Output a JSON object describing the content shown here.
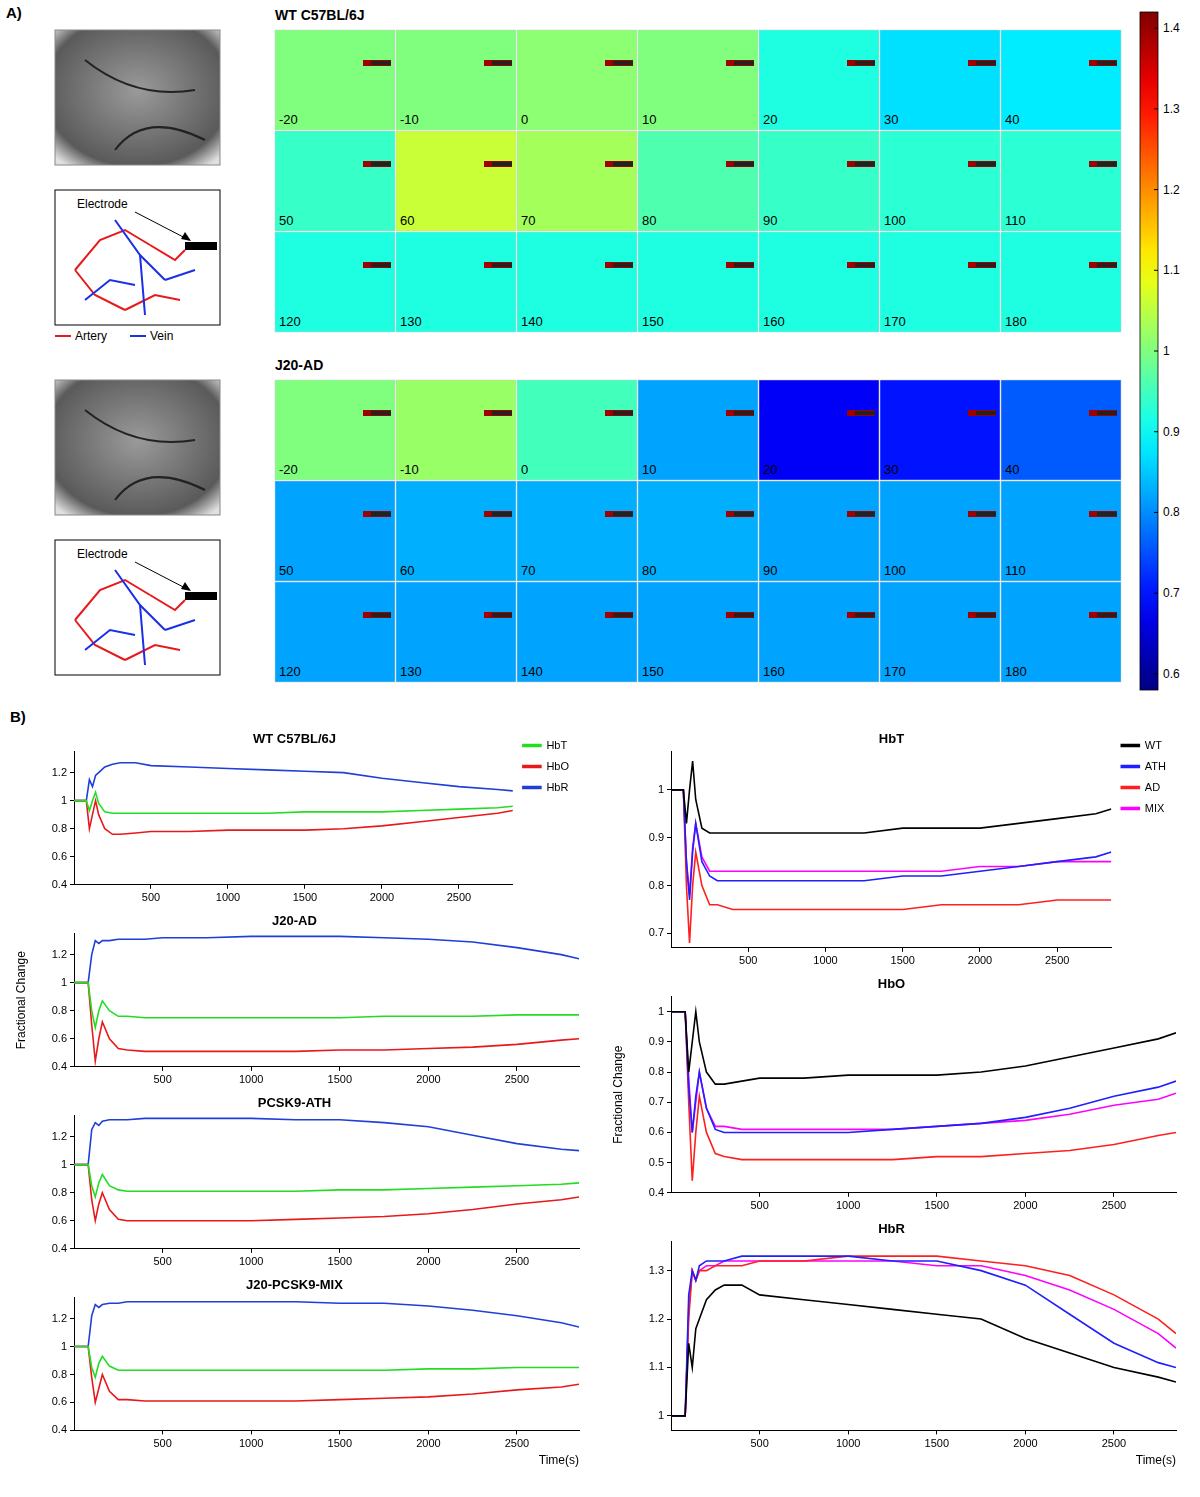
{
  "panel_a": {
    "label": "A)",
    "colorbar": {
      "lim": [
        0.58,
        1.42
      ],
      "ticks": [
        0.6,
        0.7,
        0.8,
        0.9,
        1,
        1.1,
        1.2,
        1.3,
        1.4
      ]
    },
    "electrode_label": "Electrode",
    "vessel_legend": [
      {
        "name": "Artery",
        "color": "#e8191b"
      },
      {
        "name": "Vein",
        "color": "#1b2fe8"
      }
    ],
    "groups": [
      {
        "title": "WT C57BL/6J",
        "times": [
          -20,
          -10,
          0,
          10,
          20,
          30,
          40,
          50,
          60,
          70,
          80,
          90,
          100,
          110,
          120,
          130,
          140,
          150,
          160,
          170,
          180
        ],
        "values": [
          1.0,
          1.0,
          1.01,
          1.0,
          0.92,
          0.87,
          0.88,
          0.94,
          1.06,
          1.03,
          0.96,
          0.94,
          0.93,
          0.93,
          0.92,
          0.92,
          0.92,
          0.92,
          0.92,
          0.92,
          0.92
        ]
      },
      {
        "title": "J20-AD",
        "times": [
          -20,
          -10,
          0,
          10,
          20,
          30,
          40,
          50,
          60,
          70,
          80,
          90,
          100,
          110,
          120,
          130,
          140,
          150,
          160,
          170,
          180
        ],
        "values": [
          1.0,
          1.02,
          0.95,
          0.82,
          0.68,
          0.7,
          0.76,
          0.82,
          0.83,
          0.83,
          0.83,
          0.82,
          0.82,
          0.82,
          0.82,
          0.82,
          0.82,
          0.82,
          0.82,
          0.82,
          0.82
        ]
      }
    ]
  },
  "panel_b": {
    "label": "B)"
  },
  "chart_data": [
    {
      "type": "line",
      "title": "WT C57BL/6J",
      "grid": false,
      "legend": "right",
      "x": [
        0,
        50,
        80,
        100,
        120,
        140,
        160,
        200,
        250,
        300,
        400,
        500,
        750,
        1000,
        1250,
        1500,
        1750,
        2000,
        2250,
        2500,
        2750,
        2850
      ],
      "xlim": [
        0,
        2850
      ],
      "xticks": [
        500,
        1000,
        1500,
        2000,
        2500
      ],
      "ylim": [
        0.4,
        1.35
      ],
      "yticks": [
        0.4,
        0.6,
        0.8,
        1,
        1.2
      ],
      "series": [
        {
          "name": "HbT",
          "color": "#22dd22",
          "values": [
            1,
            1,
            1,
            0.93,
            1.0,
            1.06,
            0.98,
            0.92,
            0.91,
            0.91,
            0.91,
            0.91,
            0.91,
            0.91,
            0.91,
            0.92,
            0.92,
            0.92,
            0.93,
            0.94,
            0.95,
            0.96
          ]
        },
        {
          "name": "HbO",
          "color": "#e8191b",
          "values": [
            1,
            1,
            1,
            0.8,
            0.9,
            1.0,
            0.9,
            0.8,
            0.76,
            0.76,
            0.77,
            0.78,
            0.78,
            0.79,
            0.79,
            0.79,
            0.8,
            0.82,
            0.85,
            0.88,
            0.91,
            0.93
          ]
        },
        {
          "name": "HbR",
          "color": "#1f3fd8",
          "values": [
            1,
            1,
            1,
            1.15,
            1.1,
            1.18,
            1.2,
            1.24,
            1.26,
            1.27,
            1.27,
            1.25,
            1.24,
            1.23,
            1.22,
            1.21,
            1.2,
            1.16,
            1.13,
            1.1,
            1.08,
            1.07
          ]
        }
      ]
    },
    {
      "type": "line",
      "title": "J20-AD",
      "grid": false,
      "y_label": "Fractional Change",
      "x": [
        0,
        50,
        80,
        100,
        120,
        140,
        160,
        200,
        250,
        300,
        400,
        500,
        750,
        1000,
        1250,
        1500,
        1750,
        2000,
        2250,
        2500,
        2750,
        2850
      ],
      "xlim": [
        0,
        2850
      ],
      "xticks": [
        500,
        1000,
        1500,
        2000,
        2500
      ],
      "ylim": [
        0.4,
        1.35
      ],
      "yticks": [
        0.4,
        0.6,
        0.8,
        1,
        1.2
      ],
      "series": [
        {
          "name": "HbT",
          "color": "#22dd22",
          "values": [
            1,
            1,
            1,
            0.8,
            0.68,
            0.8,
            0.87,
            0.8,
            0.76,
            0.76,
            0.75,
            0.75,
            0.75,
            0.75,
            0.75,
            0.75,
            0.76,
            0.76,
            0.76,
            0.77,
            0.77,
            0.77
          ]
        },
        {
          "name": "HbO",
          "color": "#e8191b",
          "values": [
            1,
            1,
            1,
            0.7,
            0.44,
            0.6,
            0.72,
            0.6,
            0.53,
            0.52,
            0.51,
            0.51,
            0.51,
            0.51,
            0.51,
            0.52,
            0.52,
            0.53,
            0.54,
            0.56,
            0.59,
            0.6
          ]
        },
        {
          "name": "HbR",
          "color": "#1f3fd8",
          "values": [
            1,
            1,
            1,
            1.2,
            1.3,
            1.28,
            1.3,
            1.3,
            1.31,
            1.31,
            1.31,
            1.32,
            1.32,
            1.33,
            1.33,
            1.33,
            1.32,
            1.31,
            1.29,
            1.25,
            1.2,
            1.17
          ]
        }
      ]
    },
    {
      "type": "line",
      "title": "PCSK9-ATH",
      "grid": false,
      "x": [
        0,
        50,
        80,
        100,
        120,
        140,
        160,
        200,
        250,
        300,
        400,
        500,
        750,
        1000,
        1250,
        1500,
        1750,
        2000,
        2250,
        2500,
        2750,
        2850
      ],
      "xlim": [
        0,
        2850
      ],
      "xticks": [
        500,
        1000,
        1500,
        2000,
        2500
      ],
      "ylim": [
        0.4,
        1.35
      ],
      "yticks": [
        0.4,
        0.6,
        0.8,
        1,
        1.2
      ],
      "series": [
        {
          "name": "HbT",
          "color": "#22dd22",
          "values": [
            1,
            1,
            1,
            0.85,
            0.77,
            0.87,
            0.93,
            0.85,
            0.82,
            0.81,
            0.81,
            0.81,
            0.81,
            0.81,
            0.81,
            0.82,
            0.82,
            0.83,
            0.84,
            0.85,
            0.86,
            0.87
          ]
        },
        {
          "name": "HbO",
          "color": "#e8191b",
          "values": [
            1,
            1,
            1,
            0.75,
            0.6,
            0.72,
            0.8,
            0.68,
            0.61,
            0.6,
            0.6,
            0.6,
            0.6,
            0.6,
            0.61,
            0.62,
            0.63,
            0.65,
            0.68,
            0.72,
            0.75,
            0.77
          ]
        },
        {
          "name": "HbR",
          "color": "#1f3fd8",
          "values": [
            1,
            1,
            1,
            1.25,
            1.3,
            1.28,
            1.31,
            1.32,
            1.32,
            1.32,
            1.33,
            1.33,
            1.33,
            1.33,
            1.32,
            1.32,
            1.3,
            1.27,
            1.21,
            1.15,
            1.11,
            1.1
          ]
        }
      ]
    },
    {
      "type": "line",
      "title": "J20-PCSK9-MIX",
      "grid": false,
      "x_label": "Time(s)",
      "x": [
        0,
        50,
        80,
        100,
        120,
        140,
        160,
        200,
        250,
        300,
        400,
        500,
        750,
        1000,
        1250,
        1500,
        1750,
        2000,
        2250,
        2500,
        2750,
        2850
      ],
      "xlim": [
        0,
        2850
      ],
      "xticks": [
        500,
        1000,
        1500,
        2000,
        2500
      ],
      "ylim": [
        0.4,
        1.35
      ],
      "yticks": [
        0.4,
        0.6,
        0.8,
        1,
        1.2
      ],
      "series": [
        {
          "name": "HbT",
          "color": "#22dd22",
          "values": [
            1,
            1,
            1,
            0.85,
            0.78,
            0.88,
            0.93,
            0.86,
            0.83,
            0.83,
            0.83,
            0.83,
            0.83,
            0.83,
            0.83,
            0.83,
            0.83,
            0.84,
            0.84,
            0.85,
            0.85,
            0.85
          ]
        },
        {
          "name": "HbO",
          "color": "#e8191b",
          "values": [
            1,
            1,
            1,
            0.78,
            0.6,
            0.7,
            0.8,
            0.68,
            0.62,
            0.62,
            0.61,
            0.61,
            0.61,
            0.61,
            0.61,
            0.62,
            0.63,
            0.64,
            0.66,
            0.69,
            0.71,
            0.73
          ]
        },
        {
          "name": "HbR",
          "color": "#1f3fd8",
          "values": [
            1,
            1,
            1,
            1.22,
            1.3,
            1.28,
            1.3,
            1.31,
            1.31,
            1.32,
            1.32,
            1.32,
            1.32,
            1.32,
            1.32,
            1.31,
            1.31,
            1.29,
            1.26,
            1.22,
            1.17,
            1.14
          ]
        }
      ]
    },
    {
      "type": "line",
      "title": "HbT",
      "grid": false,
      "legend": "right",
      "x": [
        0,
        50,
        80,
        100,
        120,
        140,
        160,
        200,
        250,
        300,
        400,
        500,
        750,
        1000,
        1250,
        1500,
        1750,
        2000,
        2250,
        2500,
        2750,
        2850
      ],
      "xlim": [
        0,
        2850
      ],
      "xticks": [
        500,
        1000,
        1500,
        2000,
        2500
      ],
      "ylim": [
        0.67,
        1.08
      ],
      "yticks": [
        0.7,
        0.8,
        0.9,
        1
      ],
      "series": [
        {
          "name": "WT",
          "color": "#000000",
          "values": [
            1,
            1,
            1,
            0.93,
            1.0,
            1.06,
            0.98,
            0.92,
            0.91,
            0.91,
            0.91,
            0.91,
            0.91,
            0.91,
            0.91,
            0.92,
            0.92,
            0.92,
            0.93,
            0.94,
            0.95,
            0.96
          ]
        },
        {
          "name": "ATH",
          "color": "#1f1fff",
          "values": [
            1,
            1,
            1,
            0.85,
            0.77,
            0.87,
            0.93,
            0.85,
            0.82,
            0.81,
            0.81,
            0.81,
            0.81,
            0.81,
            0.81,
            0.82,
            0.82,
            0.83,
            0.84,
            0.85,
            0.86,
            0.87
          ]
        },
        {
          "name": "AD",
          "color": "#ff1f1f",
          "values": [
            1,
            1,
            1,
            0.8,
            0.68,
            0.8,
            0.87,
            0.8,
            0.76,
            0.76,
            0.75,
            0.75,
            0.75,
            0.75,
            0.75,
            0.75,
            0.76,
            0.76,
            0.76,
            0.77,
            0.77,
            0.77
          ]
        },
        {
          "name": "MIX",
          "color": "#ff00ff",
          "values": [
            1,
            1,
            1,
            0.85,
            0.78,
            0.88,
            0.93,
            0.86,
            0.83,
            0.83,
            0.83,
            0.83,
            0.83,
            0.83,
            0.83,
            0.83,
            0.83,
            0.84,
            0.84,
            0.85,
            0.85,
            0.85
          ]
        }
      ]
    },
    {
      "type": "line",
      "title": "HbO",
      "grid": false,
      "y_label": "Fractional Change",
      "x": [
        0,
        50,
        80,
        100,
        120,
        140,
        160,
        200,
        250,
        300,
        400,
        500,
        750,
        1000,
        1250,
        1500,
        1750,
        2000,
        2250,
        2500,
        2750,
        2850
      ],
      "xlim": [
        0,
        2850
      ],
      "xticks": [
        500,
        1000,
        1500,
        2000,
        2500
      ],
      "ylim": [
        0.4,
        1.05
      ],
      "yticks": [
        0.4,
        0.5,
        0.6,
        0.7,
        0.8,
        0.9,
        1
      ],
      "series": [
        {
          "name": "WT",
          "color": "#000000",
          "values": [
            1,
            1,
            1,
            0.8,
            0.9,
            1.0,
            0.9,
            0.8,
            0.76,
            0.76,
            0.77,
            0.78,
            0.78,
            0.79,
            0.79,
            0.79,
            0.8,
            0.82,
            0.85,
            0.88,
            0.91,
            0.93
          ]
        },
        {
          "name": "ATH",
          "color": "#1f1fff",
          "values": [
            1,
            1,
            1,
            0.75,
            0.6,
            0.72,
            0.8,
            0.68,
            0.61,
            0.6,
            0.6,
            0.6,
            0.6,
            0.6,
            0.61,
            0.62,
            0.63,
            0.65,
            0.68,
            0.72,
            0.75,
            0.77
          ]
        },
        {
          "name": "AD",
          "color": "#ff1f1f",
          "values": [
            1,
            1,
            1,
            0.7,
            0.44,
            0.6,
            0.72,
            0.6,
            0.53,
            0.52,
            0.51,
            0.51,
            0.51,
            0.51,
            0.51,
            0.52,
            0.52,
            0.53,
            0.54,
            0.56,
            0.59,
            0.6
          ]
        },
        {
          "name": "MIX",
          "color": "#ff00ff",
          "values": [
            1,
            1,
            1,
            0.78,
            0.6,
            0.7,
            0.8,
            0.68,
            0.62,
            0.62,
            0.61,
            0.61,
            0.61,
            0.61,
            0.61,
            0.62,
            0.63,
            0.64,
            0.66,
            0.69,
            0.71,
            0.73
          ]
        }
      ]
    },
    {
      "type": "line",
      "title": "HbR",
      "grid": false,
      "x_label": "Time(s)",
      "x": [
        0,
        50,
        80,
        100,
        120,
        140,
        160,
        200,
        250,
        300,
        400,
        500,
        750,
        1000,
        1250,
        1500,
        1750,
        2000,
        2250,
        2500,
        2750,
        2850
      ],
      "xlim": [
        0,
        2850
      ],
      "xticks": [
        500,
        1000,
        1500,
        2000,
        2500
      ],
      "ylim": [
        0.97,
        1.36
      ],
      "yticks": [
        1,
        1.1,
        1.2,
        1.3
      ],
      "series": [
        {
          "name": "WT",
          "color": "#000000",
          "values": [
            1,
            1,
            1,
            1.15,
            1.1,
            1.18,
            1.2,
            1.24,
            1.26,
            1.27,
            1.27,
            1.25,
            1.24,
            1.23,
            1.22,
            1.21,
            1.2,
            1.16,
            1.13,
            1.1,
            1.08,
            1.07
          ]
        },
        {
          "name": "ATH",
          "color": "#1f1fff",
          "values": [
            1,
            1,
            1,
            1.25,
            1.3,
            1.28,
            1.31,
            1.32,
            1.32,
            1.32,
            1.33,
            1.33,
            1.33,
            1.33,
            1.32,
            1.32,
            1.3,
            1.27,
            1.21,
            1.15,
            1.11,
            1.1
          ]
        },
        {
          "name": "AD",
          "color": "#ff1f1f",
          "values": [
            1,
            1,
            1,
            1.2,
            1.3,
            1.28,
            1.3,
            1.3,
            1.31,
            1.31,
            1.31,
            1.32,
            1.32,
            1.33,
            1.33,
            1.33,
            1.32,
            1.31,
            1.29,
            1.25,
            1.2,
            1.17
          ]
        },
        {
          "name": "MIX",
          "color": "#ff00ff",
          "values": [
            1,
            1,
            1,
            1.22,
            1.3,
            1.28,
            1.3,
            1.31,
            1.31,
            1.32,
            1.32,
            1.32,
            1.32,
            1.32,
            1.32,
            1.31,
            1.31,
            1.29,
            1.26,
            1.22,
            1.17,
            1.14
          ]
        }
      ]
    }
  ]
}
